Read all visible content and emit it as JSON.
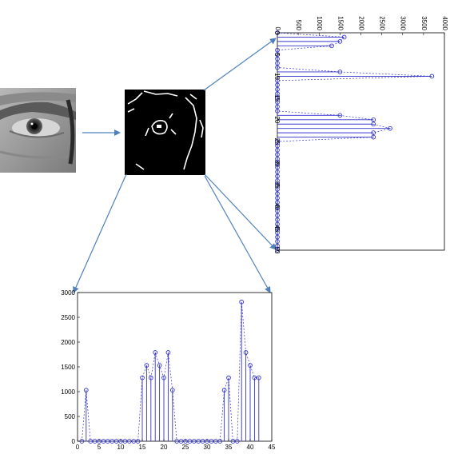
{
  "colors": {
    "stem": "#3333cc",
    "arrow": "#4f81bd",
    "axis": "#000000",
    "background": "#ffffff",
    "edge_panel_bg": "#000000",
    "edge_stroke": "#ffffff"
  },
  "images": {
    "eye_photo": "grayscale eye region photo",
    "edge_map": "binary edge-detected eye image"
  },
  "chart_data": [
    {
      "type": "stem",
      "orientation": "rotated-90",
      "x": [
        0,
        1,
        2,
        3,
        4,
        5,
        6,
        7,
        8,
        9,
        10,
        11,
        12,
        13,
        14,
        15,
        16,
        17,
        18,
        19,
        20,
        21,
        22,
        23,
        24,
        25,
        26,
        27,
        28,
        29,
        30,
        31,
        32,
        33,
        34,
        35,
        36,
        37,
        38,
        39,
        40,
        41,
        42,
        43,
        44,
        45,
        46,
        47,
        48,
        49,
        50
      ],
      "values": [
        0,
        1600,
        1500,
        1300,
        0,
        0,
        0,
        0,
        0,
        1500,
        3700,
        0,
        0,
        0,
        0,
        0,
        0,
        0,
        0,
        1500,
        2300,
        2300,
        2700,
        2300,
        2300,
        0,
        0,
        0,
        0,
        0,
        0,
        0,
        0,
        0,
        0,
        0,
        0,
        0,
        0,
        0,
        0,
        0,
        0,
        0,
        0,
        0,
        0,
        0,
        0,
        0,
        0
      ],
      "xlim": [
        0,
        50
      ],
      "ylim": [
        0,
        4000
      ],
      "x_ticks": [
        "0",
        "5",
        "10",
        "15",
        "20",
        "25",
        "30",
        "35",
        "40",
        "45",
        "50"
      ],
      "y_ticks": [
        "0",
        "500",
        "1000",
        "1500",
        "2000",
        "2500",
        "3000",
        "3500",
        "4000"
      ]
    },
    {
      "type": "stem",
      "x": [
        1,
        2,
        3,
        4,
        5,
        6,
        7,
        8,
        9,
        10,
        11,
        12,
        13,
        14,
        15,
        16,
        17,
        18,
        19,
        20,
        21,
        22,
        23,
        24,
        25,
        26,
        27,
        28,
        29,
        30,
        31,
        32,
        33,
        34,
        35,
        36,
        37,
        38,
        39,
        40,
        41,
        42
      ],
      "values": [
        0,
        1030,
        0,
        0,
        0,
        0,
        0,
        0,
        0,
        0,
        0,
        0,
        0,
        0,
        1280,
        1530,
        1280,
        1790,
        1530,
        1280,
        1790,
        1030,
        0,
        0,
        0,
        0,
        0,
        0,
        0,
        0,
        0,
        0,
        0,
        1030,
        1280,
        0,
        0,
        2810,
        1790,
        1530,
        1280,
        1280
      ],
      "xlim": [
        0,
        45
      ],
      "ylim": [
        0,
        3000
      ],
      "x_ticks": [
        "0",
        "5",
        "10",
        "15",
        "20",
        "25",
        "30",
        "35",
        "40",
        "45"
      ],
      "y_ticks": [
        "0",
        "500",
        "1000",
        "1500",
        "2000",
        "2500",
        "3000"
      ]
    }
  ]
}
